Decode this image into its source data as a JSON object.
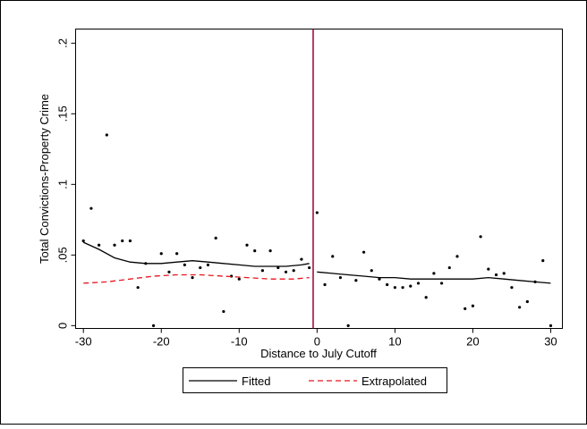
{
  "chart_data": {
    "type": "scatter",
    "title": "",
    "xlabel": "Distance to July Cutoff",
    "ylabel": "Total Convictions-Property Crime",
    "xlim": [
      -31,
      31.5
    ],
    "ylim": [
      -0.002,
      0.21
    ],
    "xticks": [
      -30,
      -20,
      -10,
      0,
      10,
      20,
      30
    ],
    "xtick_labels": [
      "-30",
      "-20",
      "-10",
      "0",
      "10",
      "20",
      "30"
    ],
    "yticks": [
      0,
      0.05,
      0.1,
      0.15,
      0.2
    ],
    "ytick_labels": [
      "0",
      ".05",
      ".1",
      ".15",
      ".2"
    ],
    "grid": false,
    "legend_position": "bottom",
    "cutoff_x": -0.5,
    "colors": {
      "fitted": "#000000",
      "extrapolated": "#e8141c",
      "cutoff": "#990033",
      "points": "#000000"
    },
    "points": [
      {
        "x": -30,
        "y": 0.06
      },
      {
        "x": -29,
        "y": 0.083
      },
      {
        "x": -28,
        "y": 0.057
      },
      {
        "x": -27,
        "y": 0.135
      },
      {
        "x": -26,
        "y": 0.057
      },
      {
        "x": -25,
        "y": 0.06
      },
      {
        "x": -24,
        "y": 0.06
      },
      {
        "x": -23,
        "y": 0.027
      },
      {
        "x": -22,
        "y": 0.044
      },
      {
        "x": -21,
        "y": 0.0
      },
      {
        "x": -20,
        "y": 0.051
      },
      {
        "x": -19,
        "y": 0.038
      },
      {
        "x": -18,
        "y": 0.051
      },
      {
        "x": -17,
        "y": 0.043
      },
      {
        "x": -16,
        "y": 0.034
      },
      {
        "x": -15,
        "y": 0.041
      },
      {
        "x": -14,
        "y": 0.043
      },
      {
        "x": -13,
        "y": 0.062
      },
      {
        "x": -12,
        "y": 0.01
      },
      {
        "x": -11,
        "y": 0.035
      },
      {
        "x": -10,
        "y": 0.033
      },
      {
        "x": -9,
        "y": 0.057
      },
      {
        "x": -8,
        "y": 0.053
      },
      {
        "x": -7,
        "y": 0.039
      },
      {
        "x": -6,
        "y": 0.053
      },
      {
        "x": -5,
        "y": 0.041
      },
      {
        "x": -4,
        "y": 0.038
      },
      {
        "x": -3,
        "y": 0.039
      },
      {
        "x": -2,
        "y": 0.047
      },
      {
        "x": -1,
        "y": 0.041
      },
      {
        "x": 0,
        "y": 0.08
      },
      {
        "x": 1,
        "y": 0.029
      },
      {
        "x": 2,
        "y": 0.049
      },
      {
        "x": 3,
        "y": 0.034
      },
      {
        "x": 4,
        "y": 0.0
      },
      {
        "x": 5,
        "y": 0.032
      },
      {
        "x": 6,
        "y": 0.052
      },
      {
        "x": 7,
        "y": 0.039
      },
      {
        "x": 8,
        "y": 0.033
      },
      {
        "x": 9,
        "y": 0.029
      },
      {
        "x": 10,
        "y": 0.027
      },
      {
        "x": 11,
        "y": 0.027
      },
      {
        "x": 12,
        "y": 0.028
      },
      {
        "x": 13,
        "y": 0.03
      },
      {
        "x": 14,
        "y": 0.02
      },
      {
        "x": 15,
        "y": 0.037
      },
      {
        "x": 16,
        "y": 0.03
      },
      {
        "x": 17,
        "y": 0.041
      },
      {
        "x": 18,
        "y": 0.049
      },
      {
        "x": 19,
        "y": 0.012
      },
      {
        "x": 20,
        "y": 0.014
      },
      {
        "x": 21,
        "y": 0.063
      },
      {
        "x": 22,
        "y": 0.04
      },
      {
        "x": 23,
        "y": 0.036
      },
      {
        "x": 24,
        "y": 0.037
      },
      {
        "x": 25,
        "y": 0.027
      },
      {
        "x": 26,
        "y": 0.013
      },
      {
        "x": 27,
        "y": 0.017
      },
      {
        "x": 28,
        "y": 0.031
      },
      {
        "x": 29,
        "y": 0.046
      },
      {
        "x": 30,
        "y": 0.0
      }
    ],
    "series": [
      {
        "name": "Fitted",
        "style": "solid",
        "segments": [
          [
            [
              -30,
              0.059
            ],
            [
              -28,
              0.054
            ],
            [
              -26,
              0.048
            ],
            [
              -24,
              0.045
            ],
            [
              -22,
              0.044
            ],
            [
              -20,
              0.044
            ],
            [
              -18,
              0.045
            ],
            [
              -16,
              0.046
            ],
            [
              -14,
              0.045
            ],
            [
              -12,
              0.044
            ],
            [
              -10,
              0.043
            ],
            [
              -8,
              0.042
            ],
            [
              -6,
              0.042
            ],
            [
              -4,
              0.042
            ],
            [
              -2,
              0.043
            ],
            [
              -1,
              0.044
            ]
          ],
          [
            [
              0,
              0.038
            ],
            [
              2,
              0.037
            ],
            [
              4,
              0.036
            ],
            [
              6,
              0.035
            ],
            [
              8,
              0.034
            ],
            [
              10,
              0.034
            ],
            [
              12,
              0.033
            ],
            [
              14,
              0.033
            ],
            [
              16,
              0.033
            ],
            [
              18,
              0.033
            ],
            [
              20,
              0.033
            ],
            [
              22,
              0.034
            ],
            [
              24,
              0.033
            ],
            [
              26,
              0.032
            ],
            [
              28,
              0.031
            ],
            [
              30,
              0.03
            ]
          ]
        ]
      },
      {
        "name": "Extrapolated",
        "style": "dashed",
        "segments": [
          [
            [
              -30,
              0.03
            ],
            [
              -27,
              0.031
            ],
            [
              -24,
              0.033
            ],
            [
              -21,
              0.035
            ],
            [
              -18,
              0.036
            ],
            [
              -15,
              0.036
            ],
            [
              -12,
              0.035
            ],
            [
              -9,
              0.034
            ],
            [
              -6,
              0.033
            ],
            [
              -3,
              0.033
            ],
            [
              -1,
              0.034
            ]
          ]
        ]
      }
    ]
  }
}
